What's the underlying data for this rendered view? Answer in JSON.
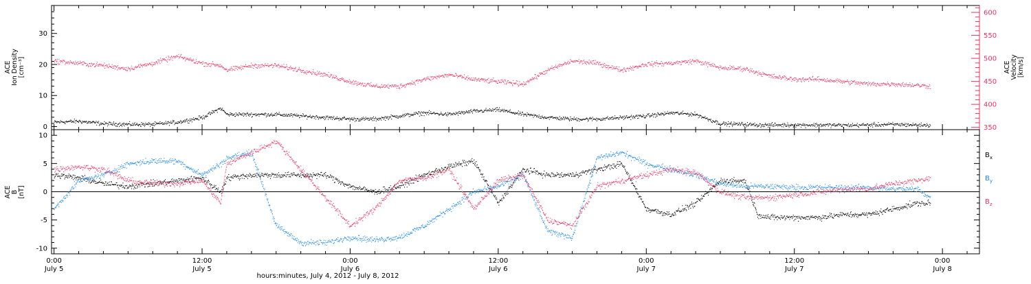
{
  "chart_data": [
    {
      "type": "scatter",
      "panel": "density-velocity",
      "ylabel_left": [
        "ACE",
        "Ion Density",
        "[cm⁻³]"
      ],
      "ylabel_right": [
        "ACE",
        "Velocity",
        "[km/s]"
      ],
      "ylim_left": [
        -1,
        39
      ],
      "ylim_right": [
        345,
        615
      ],
      "yticks_left": [
        0,
        10,
        20,
        30
      ],
      "yticks_right": [
        350,
        400,
        450,
        500,
        550,
        600
      ],
      "colors": {
        "density": "#000000",
        "velocity": "#e8335f"
      },
      "series": [
        {
          "key": "density",
          "axis": "left",
          "x": [
            0,
            2,
            4,
            6,
            8,
            10,
            12,
            13.5,
            14,
            16,
            18,
            20,
            22,
            24,
            26,
            28,
            30,
            32,
            34,
            36,
            38,
            40,
            42,
            44,
            46,
            48,
            50,
            52,
            54,
            56,
            57,
            58,
            60,
            62,
            64,
            66,
            68,
            70,
            71
          ],
          "values": [
            1.5,
            1.8,
            1,
            0.8,
            0.8,
            1.5,
            3,
            6,
            4,
            4,
            4,
            3.5,
            3,
            2.5,
            2.5,
            3.5,
            4.5,
            4,
            5,
            5.5,
            4,
            3,
            2.5,
            2.5,
            3,
            3.5,
            4.5,
            4,
            1,
            0.8,
            0.6,
            0.6,
            0.6,
            0.6,
            0.5,
            0.6,
            0.8,
            0.6,
            0.5
          ]
        },
        {
          "key": "velocity",
          "axis": "right",
          "x": [
            0,
            2,
            4,
            6,
            8,
            10,
            12,
            13.5,
            14,
            16,
            18,
            20,
            22,
            24,
            26,
            28,
            30,
            32,
            34,
            36,
            38,
            40,
            42,
            44,
            46,
            48,
            50,
            52,
            54,
            56,
            57,
            58,
            60,
            62,
            64,
            66,
            68,
            70,
            71
          ],
          "values": [
            495,
            490,
            485,
            478,
            490,
            505,
            490,
            485,
            475,
            485,
            485,
            475,
            465,
            450,
            440,
            440,
            455,
            465,
            455,
            450,
            445,
            475,
            495,
            490,
            475,
            488,
            490,
            495,
            480,
            478,
            470,
            462,
            455,
            455,
            450,
            445,
            445,
            442,
            440
          ]
        }
      ]
    },
    {
      "type": "scatter",
      "panel": "magnetic-field",
      "ylabel": [
        "ACE",
        "B",
        "[nT]"
      ],
      "ylim": [
        -11,
        11
      ],
      "yticks": [
        -10,
        -5,
        0,
        5,
        10
      ],
      "legend_position": "right",
      "series": [
        {
          "name": "B",
          "sub": "x",
          "color": "#000000",
          "x": [
            0,
            2,
            4,
            6,
            8,
            10,
            12,
            13.5,
            14,
            16,
            18,
            20,
            22,
            24,
            26,
            28,
            30,
            32,
            34,
            36,
            38,
            40,
            42,
            44,
            46,
            48,
            50,
            52,
            54,
            56,
            57,
            58,
            60,
            62,
            64,
            66,
            68,
            70,
            71
          ],
          "values": [
            3,
            2.5,
            1.5,
            1,
            1.5,
            2,
            2.5,
            0,
            2.5,
            3,
            3,
            3,
            3,
            1,
            0,
            1,
            3,
            4.5,
            5.5,
            -2,
            4,
            3,
            3,
            4,
            5,
            -3,
            -4,
            -2,
            2,
            2,
            -4,
            -4.5,
            -4.5,
            -4.5,
            -4,
            -4,
            -3,
            -2,
            -2
          ]
        },
        {
          "name": "B",
          "sub": "y",
          "color": "#1e88e5",
          "x": [
            0,
            2,
            4,
            6,
            8,
            10,
            12,
            13.5,
            14,
            16,
            18,
            20,
            22,
            24,
            26,
            28,
            30,
            32,
            34,
            36,
            38,
            40,
            42,
            44,
            46,
            48,
            50,
            52,
            54,
            56,
            57,
            58,
            60,
            62,
            64,
            66,
            68,
            70,
            71
          ],
          "values": [
            -3,
            2,
            3,
            5,
            5.5,
            5.5,
            3,
            5,
            6,
            7,
            -6,
            -9,
            -9,
            -8,
            -8.5,
            -8,
            -6,
            -3,
            0,
            1,
            3,
            -7,
            -8,
            6,
            7,
            5,
            4,
            3,
            1.5,
            1,
            1,
            1,
            0.8,
            0.8,
            0.8,
            0.8,
            0.5,
            0.5,
            -1
          ]
        },
        {
          "name": "B",
          "sub": "z",
          "color": "#e8335f",
          "x": [
            0,
            2,
            4,
            6,
            8,
            10,
            12,
            13.5,
            14,
            16,
            18,
            20,
            22,
            24,
            26,
            28,
            30,
            32,
            34,
            36,
            38,
            40,
            42,
            44,
            46,
            48,
            50,
            52,
            54,
            56,
            57,
            58,
            60,
            62,
            64,
            66,
            68,
            70,
            71
          ],
          "values": [
            4,
            4.5,
            4,
            2,
            1.5,
            1.5,
            2,
            -2,
            5,
            7,
            9,
            4,
            -1,
            -6,
            -3,
            2,
            2.5,
            4,
            -3,
            2,
            3,
            -5,
            -6,
            1,
            2,
            3,
            4,
            3.5,
            0,
            -1,
            -1,
            -1,
            -0.5,
            0,
            0.5,
            0.5,
            1.5,
            2,
            2.5
          ]
        }
      ]
    }
  ],
  "x_axis": {
    "xlim": [
      -0.2,
      75
    ],
    "tick_hours": [
      0,
      12,
      24,
      36,
      48,
      60,
      72
    ],
    "tick_time_labels": [
      "0:00",
      "12:00",
      "0:00",
      "12:00",
      "0:00",
      "12:00",
      "0:00"
    ],
    "tick_date_labels": [
      "July 5",
      "July 5",
      "July 6",
      "July 6",
      "July 7",
      "July 7",
      "July 8"
    ],
    "label": "hours:minutes, July  4, 2012 - July  8, 2012"
  }
}
